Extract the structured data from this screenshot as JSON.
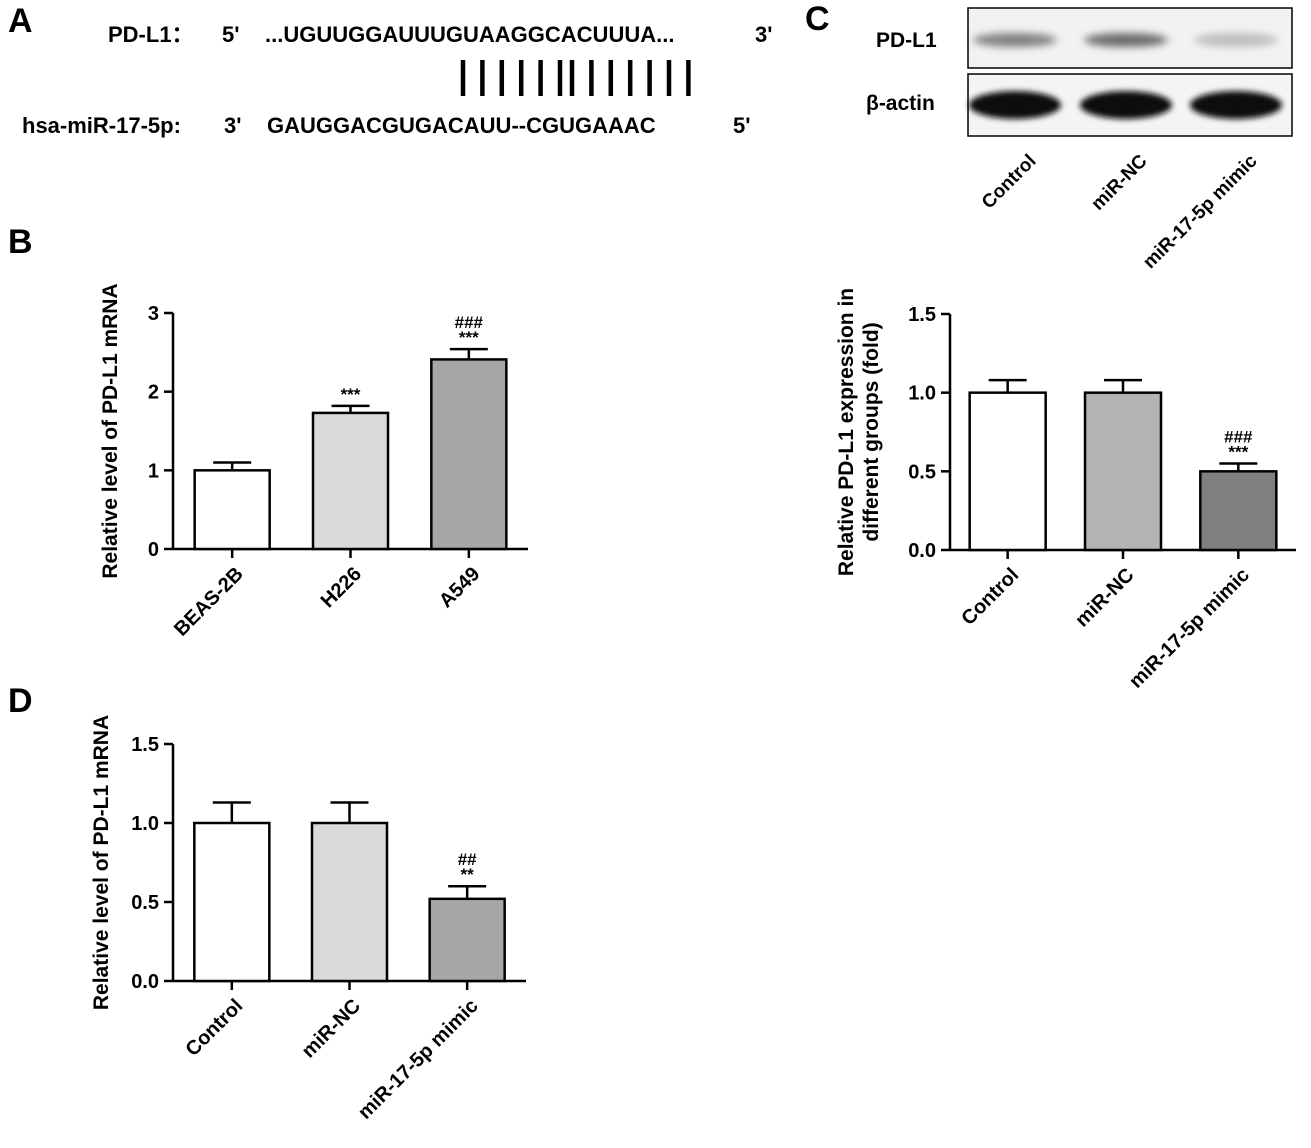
{
  "panels": {
    "a": "A",
    "b": "B",
    "c": "C",
    "d": "D"
  },
  "sequence": {
    "pdl1_label": "PD-L1：",
    "pdl1_5p": "5'",
    "pdl1_seq": "...UGUUGGAUUUGUAAGGCACUUUA...",
    "pdl1_3p": "3'",
    "pairing_left_count": 6,
    "pairing_right_count": 7,
    "mir_label": "hsa-miR-17-5p:",
    "mir_3p": "3'",
    "mir_seq": "GAUGGACGUGACAUU--CGUGAAAC",
    "mir_5p": "5'"
  },
  "blot": {
    "rows": [
      {
        "label": "PD-L1",
        "intensities": [
          0.7,
          0.85,
          0.3
        ]
      },
      {
        "label": "β-actin",
        "intensities": [
          1.0,
          1.0,
          1.0
        ]
      }
    ],
    "lanes": [
      "Control",
      "miR-NC",
      "miR-17-5p mimic"
    ]
  },
  "chart_data": [
    {
      "id": "B",
      "type": "bar",
      "categories": [
        "BEAS-2B",
        "H226",
        "A549"
      ],
      "values": [
        1.0,
        1.73,
        2.41
      ],
      "errors": [
        0.1,
        0.09,
        0.13
      ],
      "colors": [
        "#ffffff",
        "#d9d9d9",
        "#a6a6a6"
      ],
      "annotations": [
        [],
        [
          "***"
        ],
        [
          "###",
          "***"
        ]
      ],
      "ylabel": "Relative level of PD-L1 mRNA",
      "ylim": [
        0,
        3
      ],
      "yticks": [
        "0",
        "1",
        "2",
        "3"
      ],
      "ytick_values": [
        0,
        1,
        2,
        3
      ]
    },
    {
      "id": "C",
      "type": "bar",
      "categories": [
        "Control",
        "miR-NC",
        "miR-17-5p mimic"
      ],
      "values": [
        1.0,
        1.0,
        0.5
      ],
      "errors": [
        0.08,
        0.08,
        0.05
      ],
      "colors": [
        "#ffffff",
        "#b3b3b3",
        "#808080"
      ],
      "annotations": [
        [],
        [],
        [
          "###",
          "***"
        ]
      ],
      "ylabel": "Relative PD-L1 expression in different groups (fold)",
      "ylabel_lines": [
        "Relative PD-L1 expression in",
        "different groups (fold)"
      ],
      "ylim": [
        0,
        1.5
      ],
      "yticks": [
        "0.0",
        "0.5",
        "1.0",
        "1.5"
      ],
      "ytick_values": [
        0,
        0.5,
        1.0,
        1.5
      ]
    },
    {
      "id": "D",
      "type": "bar",
      "categories": [
        "Control",
        "miR-NC",
        "miR-17-5p mimic"
      ],
      "values": [
        1.0,
        1.0,
        0.52
      ],
      "errors": [
        0.13,
        0.13,
        0.08
      ],
      "colors": [
        "#ffffff",
        "#d9d9d9",
        "#a6a6a6"
      ],
      "annotations": [
        [],
        [],
        [
          "##",
          "**"
        ]
      ],
      "ylabel": "Relative level of PD-L1 mRNA",
      "ylim": [
        0,
        1.5
      ],
      "yticks": [
        "0.0",
        "0.5",
        "1.0",
        "1.5"
      ],
      "ytick_values": [
        0,
        0.5,
        1.0,
        1.5
      ]
    }
  ]
}
